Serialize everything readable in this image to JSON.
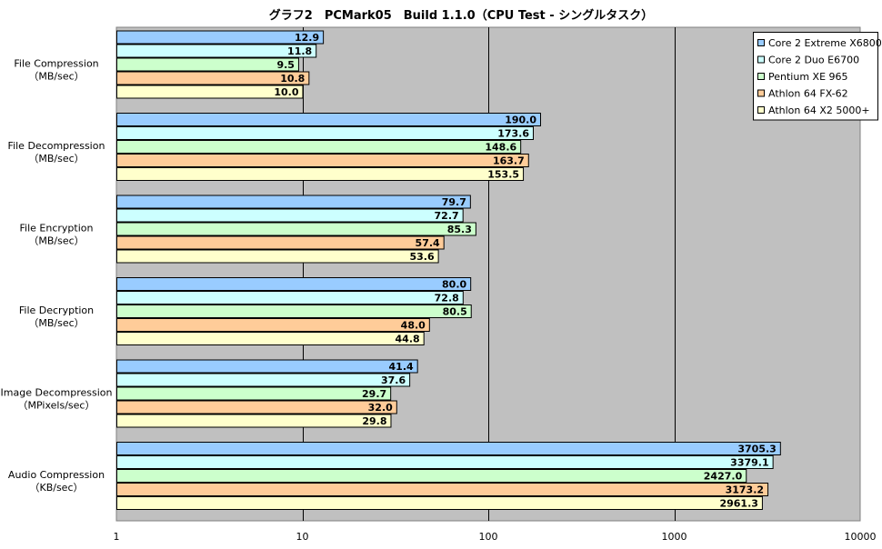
{
  "chart_data": {
    "type": "bar",
    "orientation": "horizontal",
    "title": "グラフ2　PCMark05　Build 1.1.0（CPU Test - シングルタスク）",
    "x_scale": "log",
    "xlim": [
      1,
      10000
    ],
    "x_ticks": [
      "1",
      "10",
      "100",
      "1000",
      "10000"
    ],
    "grid": true,
    "legend_position": "top-right",
    "plot_background": "#c0c0c0",
    "categories": [
      [
        "File Compression",
        "（MB/sec）"
      ],
      [
        "File Decompression",
        "（MB/sec）"
      ],
      [
        "File Encryption",
        "（MB/sec）"
      ],
      [
        "File Decryption",
        "（MB/sec）"
      ],
      [
        "Image Decompression",
        "（MPixels/sec）"
      ],
      [
        "Audio Compression",
        "（KB/sec）"
      ]
    ],
    "series": [
      {
        "name": "Core 2 Extreme X6800",
        "color": "#99ccff",
        "values": [
          12.9,
          190.0,
          79.7,
          80.0,
          41.4,
          3705.3
        ],
        "labels": [
          "12.9",
          "190.0",
          "79.7",
          "80.0",
          "41.4",
          "3705.3"
        ]
      },
      {
        "name": "Core 2 Duo E6700",
        "color": "#ccffff",
        "values": [
          11.8,
          173.6,
          72.7,
          72.8,
          37.6,
          3379.1
        ],
        "labels": [
          "11.8",
          "173.6",
          "72.7",
          "72.8",
          "37.6",
          "3379.1"
        ]
      },
      {
        "name": "Pentium XE 965",
        "color": "#ccffcc",
        "values": [
          9.5,
          148.6,
          85.3,
          80.5,
          29.7,
          2427.0
        ],
        "labels": [
          "9.5",
          "148.6",
          "85.3",
          "80.5",
          "29.7",
          "2427.0"
        ]
      },
      {
        "name": "Athlon 64 FX-62",
        "color": "#ffcc99",
        "values": [
          10.8,
          163.7,
          57.4,
          48.0,
          32.0,
          3173.2
        ],
        "labels": [
          "10.8",
          "163.7",
          "57.4",
          "48.0",
          "32.0",
          "3173.2"
        ]
      },
      {
        "name": "Athlon 64 X2 5000+",
        "color": "#ffffcc",
        "values": [
          10.0,
          153.5,
          53.6,
          44.8,
          29.8,
          2961.3
        ],
        "labels": [
          "10.0",
          "153.5",
          "53.6",
          "44.8",
          "29.8",
          "2961.3"
        ]
      }
    ]
  }
}
